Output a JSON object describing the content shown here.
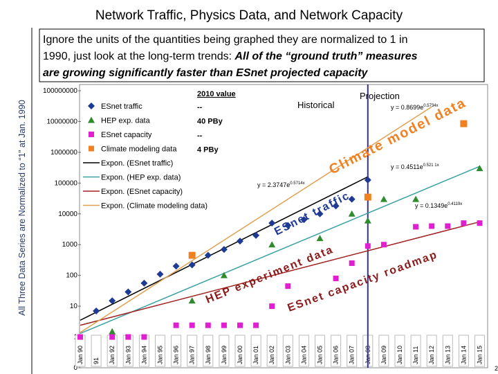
{
  "chart_data": {
    "type": "scatter",
    "title": "Network Traffic, Physics Data, and Network Capacity",
    "y_label": "All Three Data Series are Normalized to “1” at Jan. 1990",
    "box_text": [
      "Ignore the units of the quantities being graphed they are normalized to 1 in",
      "1990, just look at the long-term trends: ",
      "All of the “ground truth” measures",
      "are growing significantly faster than ESnet projected capacity"
    ],
    "log_y": true,
    "categories": [
      "Jan 90",
      "91",
      "Jan 92",
      "Jan 93",
      "Jan 94",
      "Jan 95",
      "Jan 96",
      "Jan 97",
      "Jan 98",
      "Jan 99",
      "Jan 00",
      "Jan 01",
      "Jan 02",
      "Jan 03",
      "Jan 04",
      "Jan 05",
      "Jan 06",
      "Jan 07",
      "Jan 08",
      "Jan 09",
      "Jan 10",
      "Jan 11",
      "Jan 12",
      "Jan 13",
      "Jan 14",
      "Jan 15"
    ],
    "ylim": [
      0.1,
      100000000
    ],
    "yticks": [
      {
        "value": 0.1,
        "label": "0"
      },
      1,
      10,
      100,
      1000,
      10000,
      100000,
      1000000,
      10000000,
      100000000
    ],
    "series": [
      {
        "name": "ESnet traffic",
        "color": "#1f3a93",
        "marker": "diamond",
        "values": [
          null,
          7,
          15,
          29,
          56,
          110,
          200,
          220,
          450,
          700,
          1300,
          2000,
          5000,
          4200,
          6500,
          10000,
          18000,
          30000,
          126000,
          null,
          null,
          null,
          null,
          null,
          null,
          null
        ]
      },
      {
        "name": "HEP exp. data",
        "color": "#2e8b2e",
        "marker": "triangle",
        "values": [
          null,
          null,
          1.5,
          null,
          null,
          null,
          null,
          15,
          null,
          100,
          null,
          null,
          1000,
          null,
          null,
          1600,
          null,
          10000,
          6000,
          30000,
          null,
          30000,
          null,
          null,
          null,
          300000
        ]
      },
      {
        "name": "ESnet capacity",
        "color": "#e020d0",
        "marker": "square",
        "values": [
          1,
          null,
          1,
          1,
          1,
          null,
          2.4,
          2.4,
          2.4,
          2.4,
          2.4,
          2.4,
          10,
          45,
          null,
          null,
          80,
          250,
          900,
          1000,
          null,
          3800,
          4000,
          4000,
          5000,
          5000
        ]
      },
      {
        "name": "Climate modeling data",
        "color": "#f08020",
        "marker": "square",
        "values": [
          null,
          null,
          null,
          null,
          null,
          null,
          null,
          450,
          null,
          null,
          null,
          null,
          null,
          null,
          null,
          null,
          null,
          null,
          35000,
          null,
          null,
          null,
          null,
          null,
          8500000,
          null
        ]
      }
    ],
    "trendlines": [
      {
        "name": "Expon. (ESnet traffic)",
        "color": "#000000",
        "from": "Jan 90",
        "to": "Jan 08",
        "values": [
          3.5,
          160000
        ]
      },
      {
        "name": "Expon. (HEP exp. data)",
        "color": "#3aa0a0",
        "from": "Jan 90",
        "to": "Jan 15",
        "values": [
          1.3,
          350000
        ]
      },
      {
        "name": "Expon. (ESnet capacity)",
        "color": "#a02020",
        "from": "Jan 90",
        "to": "Jan 15",
        "values": [
          2.4,
          5500
        ]
      },
      {
        "name": "Expon. (Climate modeling data)",
        "color": "#e0a050",
        "from": "Jan 90",
        "to": "Jan 12",
        "values": [
          1.4,
          30000000
        ]
      }
    ],
    "table_2010": {
      "title": "2010 value",
      "rows": [
        "--",
        "40 PBy",
        "--",
        "4 PBy"
      ]
    },
    "equations": [
      {
        "base": "y = 0.8699e",
        "exp": "0.5734x"
      },
      {
        "base": "y = 0.4511e",
        "exp": "0.521 1x"
      },
      {
        "base": "y = 2.3747e",
        "exp": "0.5714x"
      },
      {
        "base": "y = 0.1349e",
        "exp": "0.4119x"
      }
    ],
    "divider": "Jan 08",
    "period_labels": [
      "Historical",
      "Projection"
    ],
    "annotations": [
      {
        "text": "Climate model data",
        "color": "#f08020"
      },
      {
        "text": "ESnet traffic",
        "color": "#1f3a93"
      },
      {
        "text": "HEP experiment data",
        "color": "#8b1a1a"
      },
      {
        "text": "ESnet capacity roadmap",
        "color": "#8b1a1a"
      }
    ],
    "page_number": "2"
  }
}
